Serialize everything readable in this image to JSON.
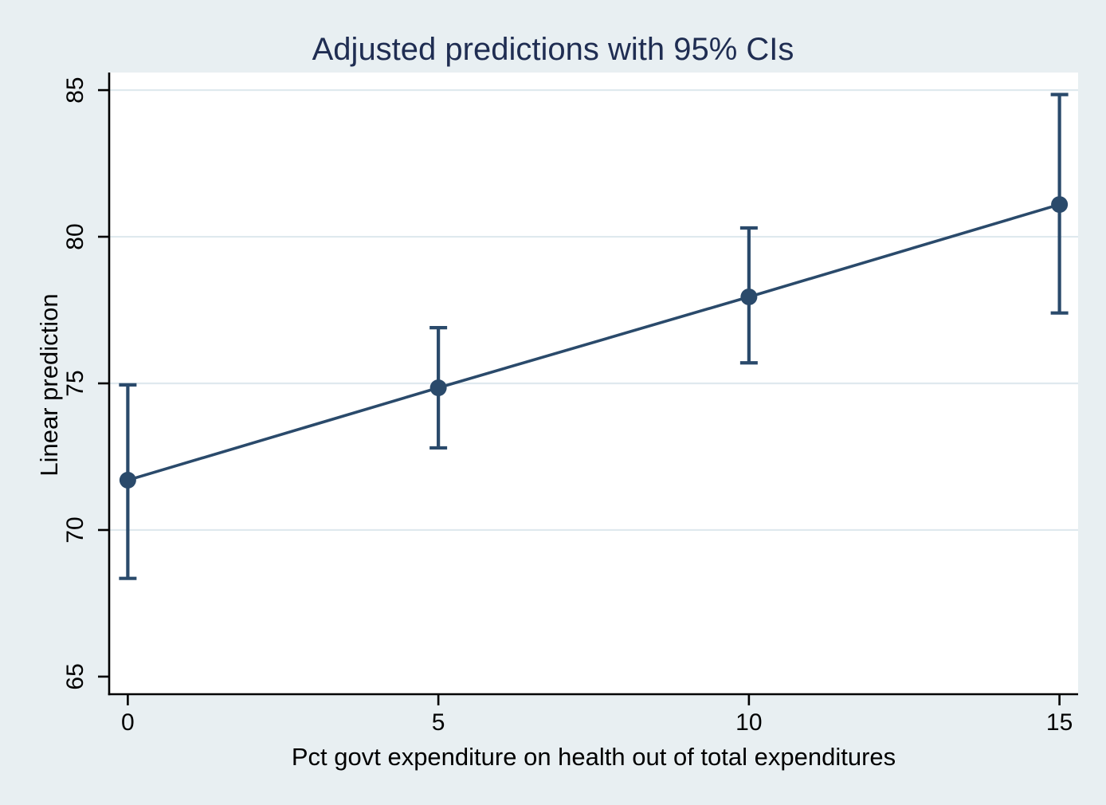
{
  "chart_data": {
    "type": "line",
    "title": "Adjusted predictions with 95% CIs",
    "xlabel": "Pct govt expenditure on health out of total expenditures",
    "ylabel": "Linear prediction",
    "x": [
      0,
      5,
      10,
      15
    ],
    "series": [
      {
        "name": "Linear prediction",
        "values": [
          71.7,
          74.85,
          77.95,
          81.1
        ],
        "ci_lower": [
          68.35,
          72.8,
          75.7,
          77.4
        ],
        "ci_upper": [
          74.95,
          76.9,
          80.3,
          84.85
        ]
      }
    ],
    "x_ticks": [
      0,
      5,
      10,
      15
    ],
    "x_tick_labels": [
      "0",
      "5",
      "10",
      "15"
    ],
    "y_ticks": [
      65,
      70,
      75,
      80,
      85
    ],
    "y_tick_labels": [
      "65",
      "70",
      "75",
      "80",
      "85"
    ],
    "grid_y_ticks": [
      70,
      75,
      80,
      85
    ],
    "xlim": [
      -0.3,
      15.3
    ],
    "ylim": [
      64.4,
      85.6
    ],
    "grid": "horizontal gridlines only, no gridline at 65",
    "legend": "none",
    "colors": {
      "series": "#2a4a6b",
      "title": "#1f2d52",
      "background": "#e8eff2",
      "plot_background": "#ffffff",
      "grid": "#dfe9ee",
      "axis": "#000000",
      "tick_text": "#000000"
    }
  }
}
